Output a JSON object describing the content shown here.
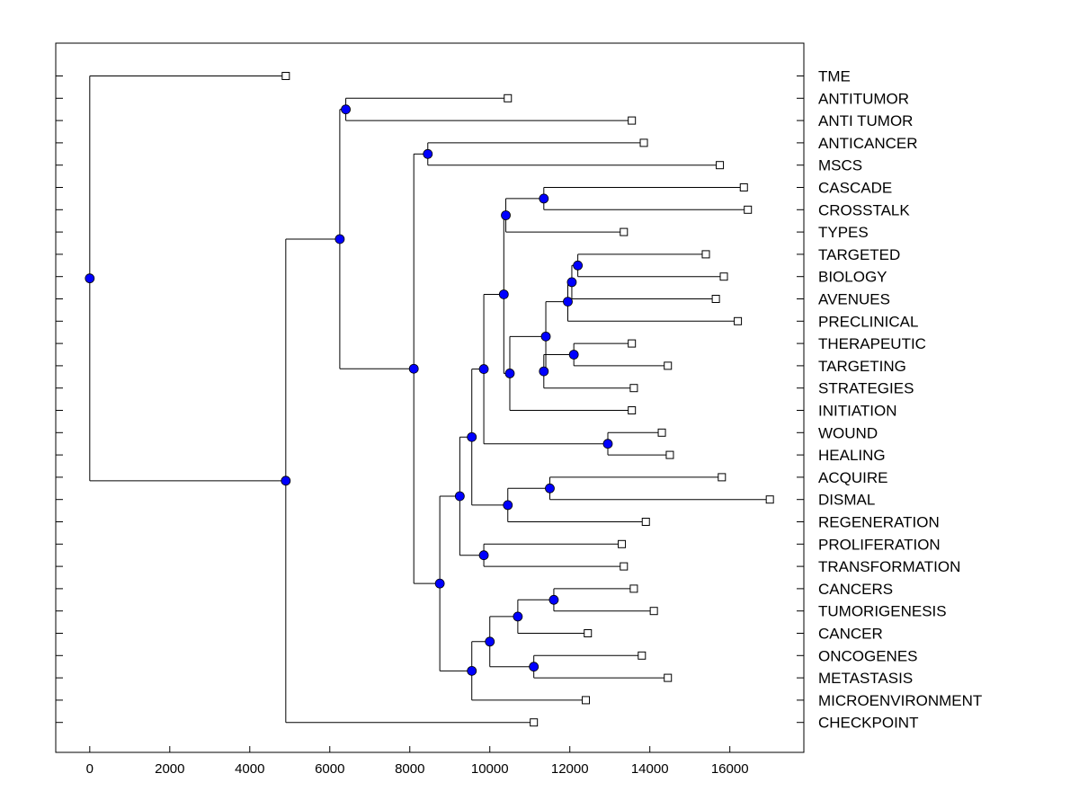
{
  "chart_data": {
    "type": "dendrogram",
    "title": "",
    "xlabel": "",
    "ylabel": "",
    "xlim": [
      -850,
      17850
    ],
    "xticks": [
      0,
      2000,
      4000,
      6000,
      8000,
      10000,
      12000,
      14000,
      16000
    ],
    "node_color": "#0000ff",
    "leaves": [
      {
        "id": "TME",
        "label": "TME",
        "x": 4900
      },
      {
        "id": "ANTITUMOR",
        "label": "ANTITUMOR",
        "x": 10450
      },
      {
        "id": "ANTI_TUMOR",
        "label": "ANTI TUMOR",
        "x": 13550
      },
      {
        "id": "ANTICANCER",
        "label": "ANTICANCER",
        "x": 13850
      },
      {
        "id": "MSCS",
        "label": "MSCS",
        "x": 15750
      },
      {
        "id": "CASCADE",
        "label": "CASCADE",
        "x": 16350
      },
      {
        "id": "CROSSTALK",
        "label": "CROSSTALK",
        "x": 16450
      },
      {
        "id": "TYPES",
        "label": "TYPES",
        "x": 13350
      },
      {
        "id": "TARGETED",
        "label": "TARGETED",
        "x": 15400
      },
      {
        "id": "BIOLOGY",
        "label": "BIOLOGY",
        "x": 15850
      },
      {
        "id": "AVENUES",
        "label": "AVENUES",
        "x": 15650
      },
      {
        "id": "PRECLINICAL",
        "label": "PRECLINICAL",
        "x": 16200
      },
      {
        "id": "THERAPEUTIC",
        "label": "THERAPEUTIC",
        "x": 13550
      },
      {
        "id": "TARGETING",
        "label": "TARGETING",
        "x": 14450
      },
      {
        "id": "STRATEGIES",
        "label": "STRATEGIES",
        "x": 13600
      },
      {
        "id": "INITIATION",
        "label": "INITIATION",
        "x": 13550
      },
      {
        "id": "WOUND",
        "label": "WOUND",
        "x": 14300
      },
      {
        "id": "HEALING",
        "label": "HEALING",
        "x": 14500
      },
      {
        "id": "ACQUIRE",
        "label": "ACQUIRE",
        "x": 15800
      },
      {
        "id": "DISMAL",
        "label": "DISMAL",
        "x": 17000
      },
      {
        "id": "REGENERATION",
        "label": "REGENERATION",
        "x": 13900
      },
      {
        "id": "PROLIFERATION",
        "label": "PROLIFERATION",
        "x": 13300
      },
      {
        "id": "TRANSFORMATION",
        "label": "TRANSFORMATION",
        "x": 13350
      },
      {
        "id": "CANCERS",
        "label": "CANCERS",
        "x": 13600
      },
      {
        "id": "TUMORIGENESIS",
        "label": "TUMORIGENESIS",
        "x": 14100
      },
      {
        "id": "CANCER",
        "label": "CANCER",
        "x": 12450
      },
      {
        "id": "ONCOGENES",
        "label": "ONCOGENES",
        "x": 13800
      },
      {
        "id": "METASTASIS",
        "label": "METASTASIS",
        "x": 14450
      },
      {
        "id": "MICROENVIRONMENT",
        "label": "MICROENVIRONMENT",
        "x": 12400
      },
      {
        "id": "CHECKPOINT",
        "label": "CHECKPOINT",
        "x": 11100
      }
    ],
    "merges": [
      {
        "id": "M1",
        "x": 12200,
        "children": [
          "TARGETED",
          "BIOLOGY"
        ]
      },
      {
        "id": "M2",
        "x": 12050,
        "children": [
          "M1",
          "AVENUES"
        ]
      },
      {
        "id": "M3",
        "x": 11950,
        "children": [
          "M2",
          "PRECLINICAL"
        ]
      },
      {
        "id": "M4",
        "x": 12100,
        "children": [
          "THERAPEUTIC",
          "TARGETING"
        ]
      },
      {
        "id": "M5",
        "x": 11350,
        "children": [
          "M4",
          "STRATEGIES"
        ]
      },
      {
        "id": "M6",
        "x": 11400,
        "children": [
          "M3",
          "M5"
        ]
      },
      {
        "id": "M7",
        "x": 10500,
        "children": [
          "M6",
          "INITIATION"
        ]
      },
      {
        "id": "M8",
        "x": 11350,
        "children": [
          "CASCADE",
          "CROSSTALK"
        ]
      },
      {
        "id": "M9",
        "x": 10400,
        "children": [
          "M8",
          "TYPES"
        ]
      },
      {
        "id": "M10",
        "x": 10350,
        "children": [
          "M9",
          "M7"
        ]
      },
      {
        "id": "M11",
        "x": 12950,
        "children": [
          "WOUND",
          "HEALING"
        ]
      },
      {
        "id": "M12",
        "x": 9850,
        "children": [
          "M10",
          "M11"
        ]
      },
      {
        "id": "M13",
        "x": 11500,
        "children": [
          "ACQUIRE",
          "DISMAL"
        ]
      },
      {
        "id": "M14",
        "x": 10450,
        "children": [
          "M13",
          "REGENERATION"
        ]
      },
      {
        "id": "M15",
        "x": 9550,
        "children": [
          "M12",
          "M14"
        ]
      },
      {
        "id": "M16",
        "x": 9850,
        "children": [
          "PROLIFERATION",
          "TRANSFORMATION"
        ]
      },
      {
        "id": "M17",
        "x": 9250,
        "children": [
          "M15",
          "M16"
        ]
      },
      {
        "id": "M18",
        "x": 11600,
        "children": [
          "CANCERS",
          "TUMORIGENESIS"
        ]
      },
      {
        "id": "M19",
        "x": 10700,
        "children": [
          "M18",
          "CANCER"
        ]
      },
      {
        "id": "M20",
        "x": 11100,
        "children": [
          "ONCOGENES",
          "METASTASIS"
        ]
      },
      {
        "id": "M21",
        "x": 10000,
        "children": [
          "M19",
          "M20"
        ]
      },
      {
        "id": "M22",
        "x": 9550,
        "children": [
          "M21",
          "MICROENVIRONMENT"
        ]
      },
      {
        "id": "M23",
        "x": 8750,
        "children": [
          "M17",
          "M22"
        ]
      },
      {
        "id": "M24",
        "x": 8450,
        "children": [
          "ANTICANCER",
          "MSCS"
        ]
      },
      {
        "id": "M25",
        "x": 8100,
        "children": [
          "M24",
          "M23"
        ]
      },
      {
        "id": "M26",
        "x": 6400,
        "children": [
          "ANTITUMOR",
          "ANTI_TUMOR"
        ]
      },
      {
        "id": "M27",
        "x": 6250,
        "children": [
          "M26",
          "M25"
        ]
      },
      {
        "id": "M28",
        "x": 4900,
        "children": [
          "M27",
          "CHECKPOINT"
        ]
      },
      {
        "id": "M29",
        "x": 0,
        "children": [
          "TME",
          "M28"
        ]
      }
    ]
  }
}
